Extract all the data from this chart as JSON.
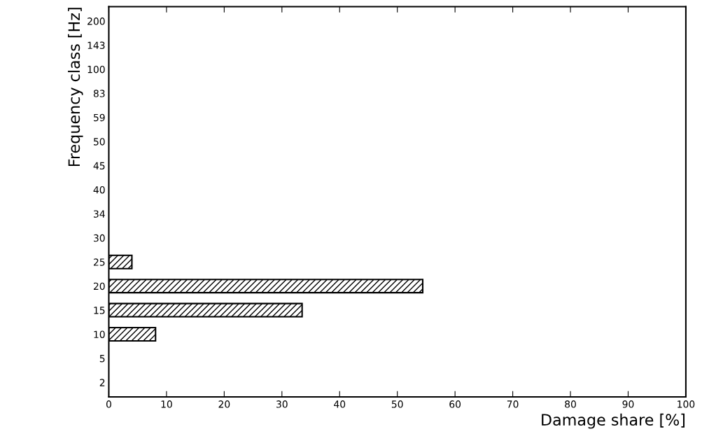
{
  "chart_data": {
    "type": "bar",
    "orientation": "horizontal",
    "xlabel": "Damage share [%]",
    "ylabel": "Frequency class [Hz]",
    "categories": [
      "200",
      "143",
      "100",
      "83",
      "59",
      "50",
      "45",
      "40",
      "34",
      "30",
      "25",
      "20",
      "15",
      "10",
      "5",
      "2"
    ],
    "values": [
      null,
      null,
      null,
      null,
      null,
      null,
      null,
      null,
      null,
      null,
      4,
      54.4,
      33.5,
      8.1,
      null,
      null
    ],
    "color": "#000000",
    "xlim": [
      0,
      100
    ],
    "xticks": [
      0,
      10,
      20,
      30,
      40,
      50,
      60,
      70,
      80,
      90,
      100
    ],
    "grid": false
  }
}
